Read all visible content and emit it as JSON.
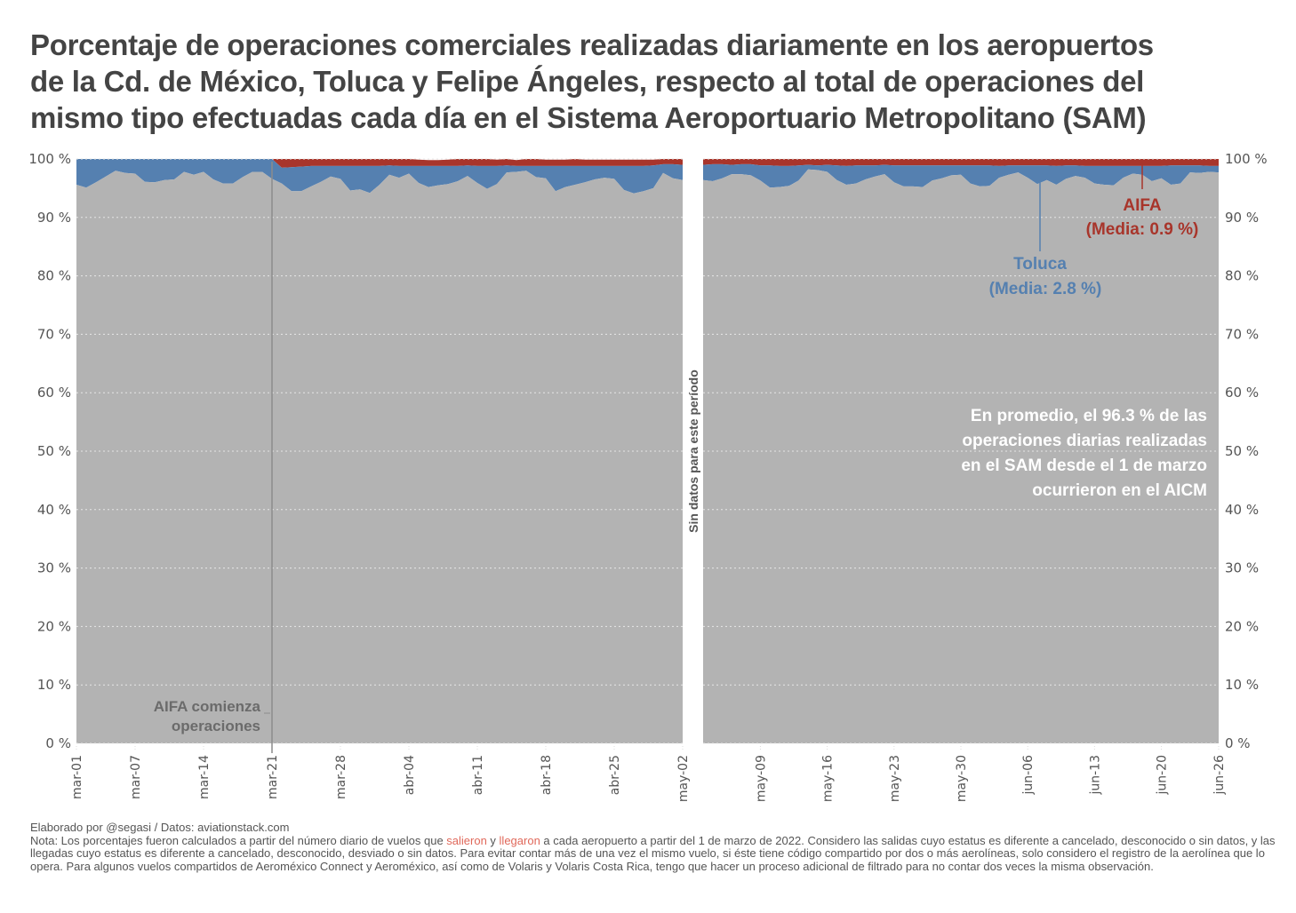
{
  "title_lines": [
    "Porcentaje de operaciones comerciales realizadas diariamente en los aeropuertos",
    "de la Cd. de México, Toluca y Felipe Ángeles, respecto al total de operaciones del",
    "mismo tipo efectuadas cada día en el Sistema Aeroportuario Metropolitano (SAM)"
  ],
  "colors": {
    "aicm": "#b3b3b3",
    "toluca": "#5580b0",
    "aifa": "#a8352b",
    "text": "#444444",
    "grid": "#e8e8e8",
    "highlight": "#e0685a"
  },
  "annotations": {
    "aifa_start": [
      "AIFA comienza",
      "operaciones"
    ],
    "no_data": "Sin datos para este período",
    "toluca": [
      "Toluca",
      "(Media: 2.8 %)"
    ],
    "aifa": [
      "AIFA",
      "(Media: 0.9 %)"
    ],
    "summary": [
      "En promedio, el 96.3 % de las",
      "operaciones diarias realizadas",
      "en el SAM desde el 1 de marzo",
      "ocurrieron en el AICM"
    ]
  },
  "caption": {
    "credit": "Elaborado por @segasi / Datos: aviationstack.com",
    "note_pre": "Nota: Los porcentajes fueron calculados a partir del número diario de vuelos que ",
    "note_salieron": "salieron",
    "note_y": " y ",
    "note_llegaron": "llegaron",
    "note_post": " a cada aeropuerto a partir del 1 de marzo de 2022. Considero las salidas cuyo estatus es diferente a cancelado, desconocido o sin datos, y las llegadas cuyo estatus es diferente a cancelado, desconocido, desviado o sin datos. Para evitar contar más de una vez el mismo vuelo, si éste tiene código compartido por dos o más aerolíneas, solo considero el registro de la aerolínea que lo opera. Para algunos vuelos compartidos de Aeroméxico Connect y Aeroméxico, así como de Volaris y Volaris Costa Rica, tengo que hacer un proceso adicional de filtrado para no contar dos veces la misma observación."
  },
  "chart_data": {
    "type": "area",
    "stacked": true,
    "title": "Porcentaje de operaciones comerciales realizadas diariamente en los aeropuertos de la Cd. de México, Toluca y Felipe Ángeles, respecto al total de operaciones del mismo tipo efectuadas cada día en el Sistema Aeroportuario Metropolitano (SAM)",
    "xlabel": "",
    "ylabel": "",
    "ylim": [
      0,
      100
    ],
    "yticks": [
      "0 %",
      "10 %",
      "20 %",
      "30 %",
      "40 %",
      "50 %",
      "60 %",
      "70 %",
      "80 %",
      "90 %",
      "100 %"
    ],
    "grid": true,
    "legend": "none (direct labels)",
    "panels": [
      {
        "name": "mar-01 to may-02",
        "xticks": [
          "mar-01",
          "mar-07",
          "mar-14",
          "mar-21",
          "mar-28",
          "abr-04",
          "abr-11",
          "abr-18",
          "abr-25",
          "may-02"
        ],
        "xtick_days": [
          0,
          6,
          13,
          20,
          27,
          34,
          41,
          48,
          55,
          62
        ],
        "days": 62,
        "aicm": [
          95.6,
          95.1,
          96.0,
          97.0,
          98.0,
          97.6,
          97.5,
          96.1,
          96.0,
          96.4,
          96.5,
          97.8,
          97.3,
          97.8,
          96.5,
          95.8,
          95.8,
          96.9,
          97.8,
          97.8,
          96.6,
          95.8,
          94.5,
          94.5,
          95.3,
          96.1,
          97.0,
          96.6,
          94.6,
          94.8,
          94.2,
          95.6,
          97.3,
          96.8,
          97.5,
          95.9,
          95.2,
          95.5,
          95.7,
          96.2,
          97.1,
          95.9,
          94.9,
          95.7,
          97.7,
          97.8,
          98.0,
          96.9,
          96.7,
          94.5,
          95.2,
          95.6,
          96.0,
          96.5,
          96.8,
          96.6,
          94.7,
          94.1,
          94.5,
          95.0,
          97.6,
          96.7,
          96.4
        ],
        "toluca": [
          4.4,
          4.9,
          4.0,
          3.0,
          2.0,
          2.4,
          2.5,
          3.9,
          4.0,
          3.6,
          3.5,
          2.2,
          2.7,
          2.2,
          3.5,
          4.2,
          4.2,
          3.1,
          2.2,
          2.2,
          3.4,
          2.7,
          4.1,
          4.2,
          3.5,
          2.7,
          1.8,
          2.2,
          4.2,
          4.0,
          4.6,
          3.2,
          1.6,
          2.0,
          1.3,
          2.9,
          3.6,
          3.3,
          3.1,
          2.6,
          1.8,
          2.9,
          3.9,
          3.1,
          1.2,
          1.0,
          0.8,
          1.9,
          2.1,
          4.3,
          3.6,
          3.2,
          2.8,
          2.3,
          2.0,
          2.2,
          4.1,
          4.7,
          4.3,
          3.9,
          1.5,
          2.4,
          2.6
        ],
        "aifa": [
          0,
          0,
          0,
          0,
          0,
          0,
          0,
          0,
          0,
          0,
          0,
          0,
          0,
          0,
          0,
          0,
          0,
          0,
          0,
          0,
          0,
          1.5,
          1.4,
          1.3,
          1.2,
          1.2,
          1.2,
          1.2,
          1.2,
          1.2,
          1.2,
          1.2,
          1.1,
          1.2,
          1.2,
          1.1,
          1.0,
          1.0,
          1.1,
          1.2,
          1.1,
          1.2,
          1.2,
          1.1,
          1.1,
          1.0,
          1.2,
          1.2,
          1.1,
          1.1,
          1.1,
          1.2,
          1.1,
          1.1,
          1.1,
          1.1,
          1.1,
          1.1,
          1.1,
          1.0,
          1.0,
          0.9,
          1.2
        ]
      },
      {
        "name": "may-03 to jun-26",
        "xticks": [
          "may-09",
          "may-16",
          "may-23",
          "may-30",
          "jun-06",
          "jun-13",
          "jun-20",
          "jun-26"
        ],
        "xtick_days": [
          6,
          13,
          20,
          27,
          34,
          41,
          48,
          54
        ],
        "days": 54,
        "aicm": [
          96.4,
          96.2,
          96.7,
          97.4,
          97.4,
          97.2,
          96.3,
          95.1,
          95.2,
          95.4,
          96.3,
          98.2,
          98.1,
          97.8,
          96.4,
          95.6,
          95.8,
          96.5,
          97.0,
          97.4,
          96.0,
          95.3,
          95.3,
          95.2,
          96.3,
          96.7,
          97.2,
          97.3,
          95.8,
          95.3,
          95.4,
          96.8,
          97.3,
          97.7,
          96.8,
          95.7,
          96.4,
          95.6,
          96.6,
          97.1,
          96.8,
          95.8,
          95.6,
          95.5,
          96.8,
          97.5,
          97.3,
          96.2,
          96.7,
          95.6,
          95.8,
          97.7,
          97.6,
          97.8,
          97.7
        ],
        "toluca": [
          2.6,
          2.9,
          2.4,
          1.6,
          1.7,
          1.9,
          2.6,
          3.8,
          3.6,
          3.4,
          2.6,
          0.8,
          0.8,
          1.2,
          2.5,
          3.2,
          3.1,
          2.4,
          1.9,
          1.6,
          2.9,
          3.6,
          3.6,
          3.7,
          2.6,
          2.2,
          1.7,
          1.6,
          3.1,
          3.6,
          3.5,
          2.0,
          1.6,
          1.2,
          2.1,
          3.2,
          2.5,
          3.2,
          2.3,
          1.8,
          2.0,
          3.0,
          3.2,
          3.3,
          2.0,
          1.3,
          1.5,
          2.6,
          2.1,
          3.3,
          3.1,
          1.2,
          1.3,
          1.0,
          1.1
        ],
        "aifa": [
          1.0,
          0.9,
          0.9,
          1.0,
          0.9,
          0.9,
          1.1,
          1.1,
          1.2,
          1.2,
          1.1,
          1.0,
          1.1,
          1.0,
          1.1,
          1.2,
          1.1,
          1.1,
          1.1,
          1.0,
          1.1,
          1.1,
          1.1,
          1.1,
          1.1,
          1.1,
          1.1,
          1.1,
          1.1,
          1.1,
          1.1,
          1.2,
          1.1,
          1.1,
          1.1,
          1.1,
          1.1,
          1.2,
          1.1,
          1.1,
          1.2,
          1.2,
          1.2,
          1.2,
          1.2,
          1.2,
          1.2,
          1.2,
          1.2,
          1.1,
          1.1,
          1.1,
          1.1,
          1.2,
          1.2
        ]
      }
    ],
    "series_names": [
      "AICM",
      "Toluca",
      "AIFA"
    ],
    "means": {
      "AICM": 96.3,
      "Toluca": 2.8,
      "AIFA": 0.9
    }
  }
}
